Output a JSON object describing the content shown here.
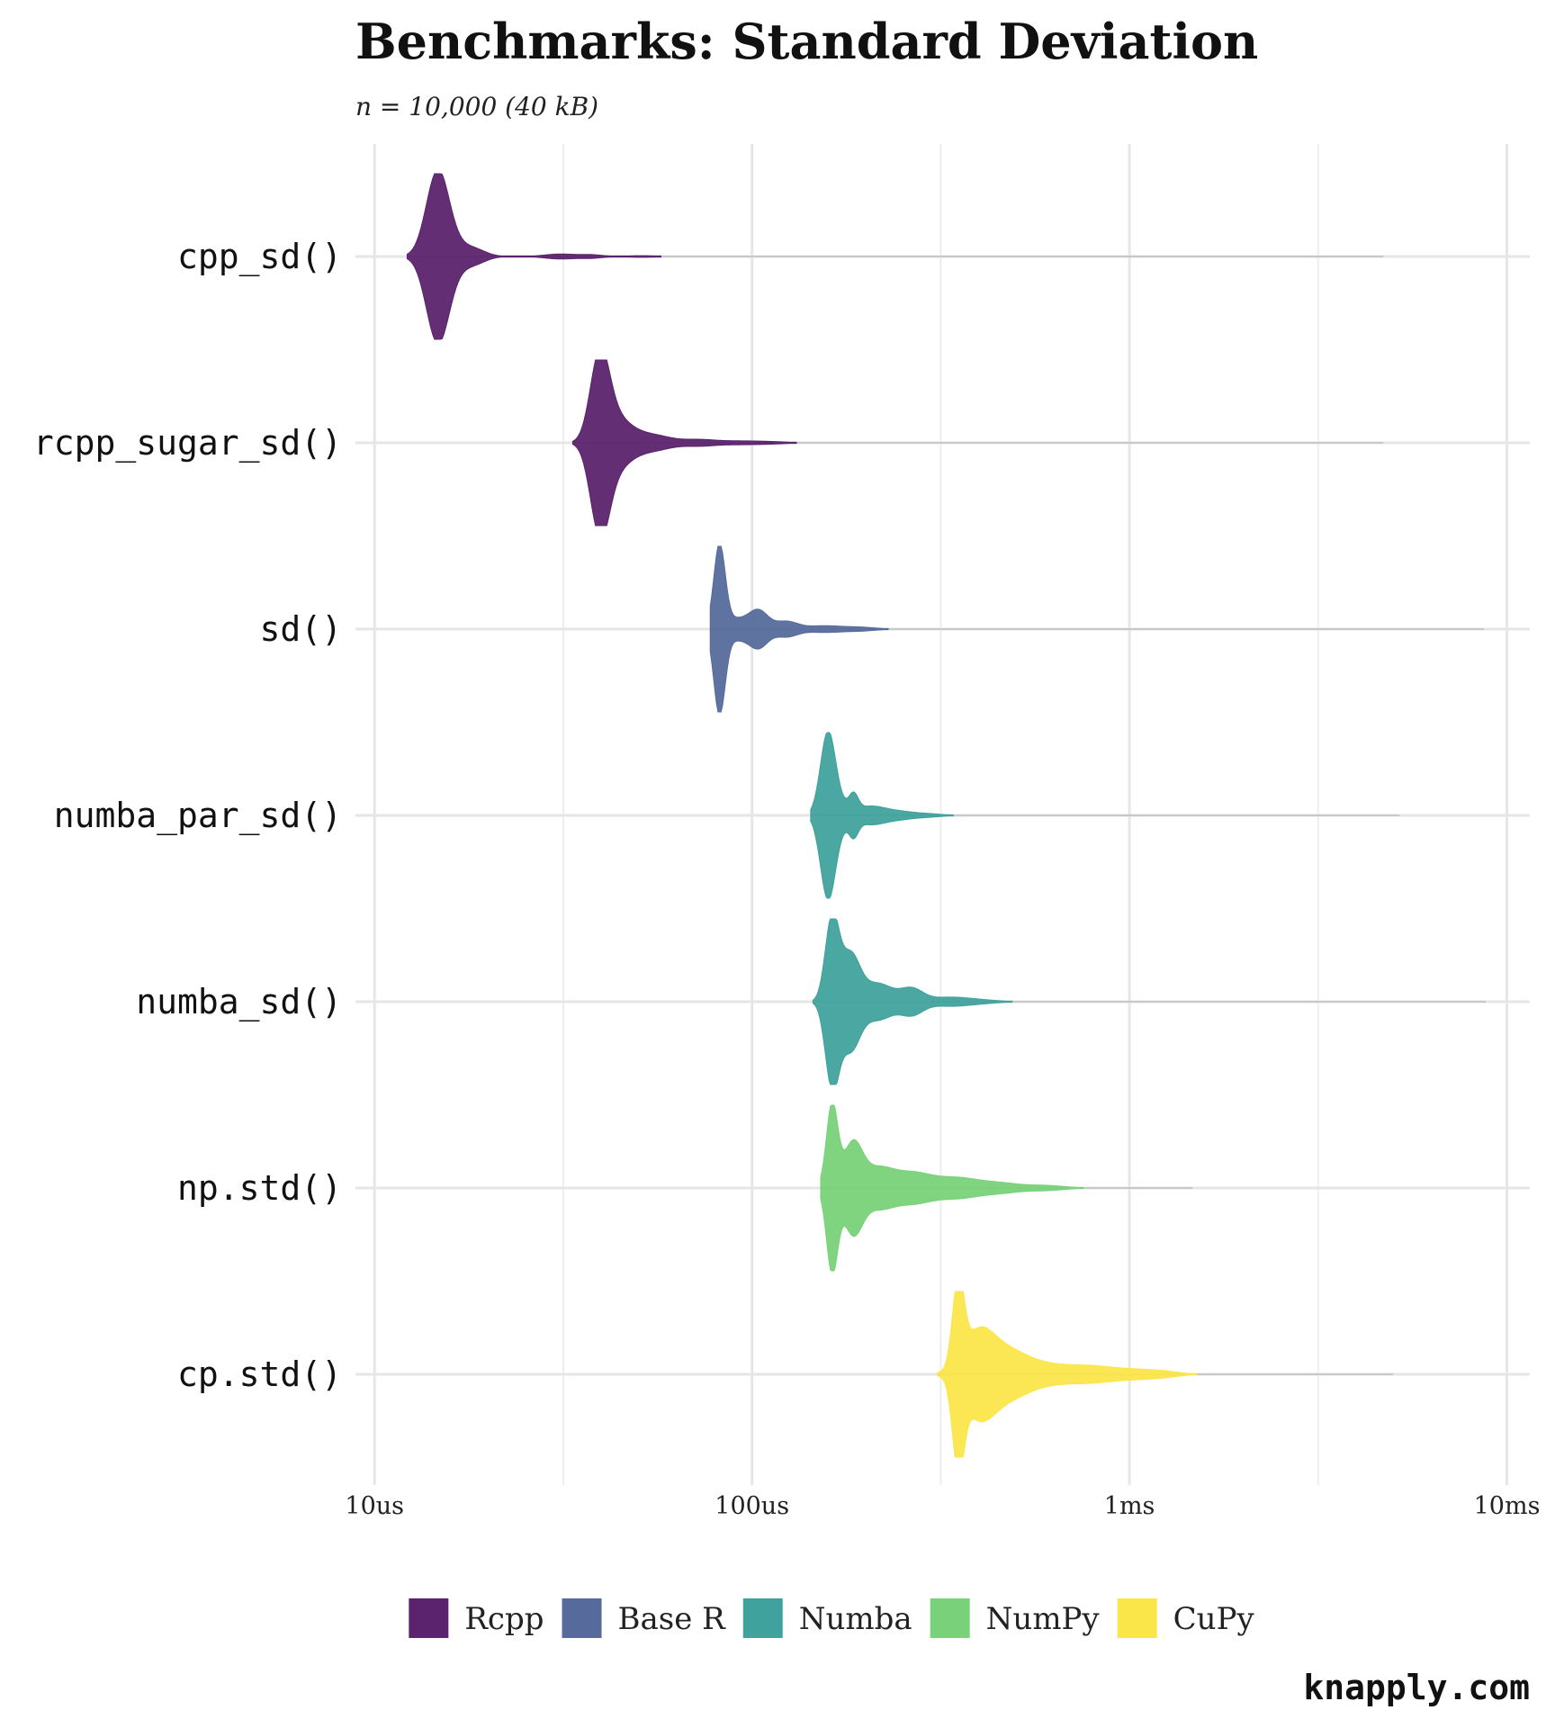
{
  "chart_data": {
    "type": "violin",
    "title": "Benchmarks: Standard Deviation",
    "subtitle": "n = 10,000 (40 kB)",
    "x_scale": "log10",
    "x_unit": "seconds",
    "xlim": [
      8.9e-06,
      0.0115
    ],
    "x_ticks": [
      {
        "value": 1e-05,
        "label": "10us"
      },
      {
        "value": 0.0001,
        "label": "100us"
      },
      {
        "value": 0.001,
        "label": "1ms"
      },
      {
        "value": 0.01,
        "label": "10ms"
      }
    ],
    "grid": true,
    "legend_position": "bottom",
    "legend": [
      {
        "name": "Rcpp",
        "color": "#5b236d"
      },
      {
        "name": "Base R",
        "color": "#566b9b"
      },
      {
        "name": "Numba",
        "color": "#40a29c"
      },
      {
        "name": "NumPy",
        "color": "#79d279"
      },
      {
        "name": "CuPy",
        "color": "#fbe64a"
      }
    ],
    "series": [
      {
        "expression": "cpp_sd()",
        "group": "Rcpp",
        "color": "#5b236d",
        "min": 1.22e-05,
        "max": 0.0047,
        "peaks": [
          {
            "x": 1.47e-05,
            "h": 1.0,
            "w": 0.03
          },
          {
            "x": 1.65e-05,
            "h": 0.1,
            "w": 0.045
          },
          {
            "x": 1.85e-05,
            "h": 0.05,
            "w": 0.03
          },
          {
            "x": 3.1e-05,
            "h": 0.03,
            "w": 0.04
          },
          {
            "x": 3.75e-05,
            "h": 0.02,
            "w": 0.03
          },
          {
            "x": 5.1e-05,
            "h": 0.01,
            "w": 0.04
          }
        ]
      },
      {
        "expression": "rcpp_sugar_sd()",
        "group": "Rcpp",
        "color": "#5b236d",
        "min": 3.35e-05,
        "max": 0.0047,
        "peaks": [
          {
            "x": 3.95e-05,
            "h": 1.0,
            "w": 0.025
          },
          {
            "x": 4.3e-05,
            "h": 0.25,
            "w": 0.035
          },
          {
            "x": 4.8e-05,
            "h": 0.1,
            "w": 0.04
          },
          {
            "x": 5.6e-05,
            "h": 0.07,
            "w": 0.04
          },
          {
            "x": 7.2e-05,
            "h": 0.04,
            "w": 0.05
          },
          {
            "x": 9.5e-05,
            "h": 0.02,
            "w": 0.05
          },
          {
            "x": 0.000115,
            "h": 0.01,
            "w": 0.04
          }
        ]
      },
      {
        "expression": "sd()",
        "group": "Base R",
        "color": "#566b9b",
        "min": 7.75e-05,
        "max": 0.0087,
        "peaks": [
          {
            "x": 8.2e-05,
            "h": 1.0,
            "w": 0.015
          },
          {
            "x": 9.05e-05,
            "h": 0.12,
            "w": 0.03
          },
          {
            "x": 0.000104,
            "h": 0.22,
            "w": 0.025
          },
          {
            "x": 0.000123,
            "h": 0.09,
            "w": 0.03
          },
          {
            "x": 0.000155,
            "h": 0.04,
            "w": 0.05
          },
          {
            "x": 0.000195,
            "h": 0.02,
            "w": 0.04
          }
        ]
      },
      {
        "expression": "numba_par_sd()",
        "group": "Numba",
        "color": "#40a29c",
        "min": 0.000143,
        "max": 0.0052,
        "peaks": [
          {
            "x": 0.000159,
            "h": 1.0,
            "w": 0.02
          },
          {
            "x": 0.000175,
            "h": 0.09,
            "w": 0.025
          },
          {
            "x": 0.000186,
            "h": 0.18,
            "w": 0.012
          },
          {
            "x": 0.000205,
            "h": 0.1,
            "w": 0.035
          },
          {
            "x": 0.00024,
            "h": 0.05,
            "w": 0.04
          },
          {
            "x": 0.00029,
            "h": 0.02,
            "w": 0.04
          }
        ]
      },
      {
        "expression": "numba_sd()",
        "group": "Numba",
        "color": "#40a29c",
        "min": 0.000145,
        "max": 0.0088,
        "peaks": [
          {
            "x": 0.000163,
            "h": 1.0,
            "w": 0.018
          },
          {
            "x": 0.000182,
            "h": 0.55,
            "w": 0.025
          },
          {
            "x": 0.000215,
            "h": 0.22,
            "w": 0.04
          },
          {
            "x": 0.000265,
            "h": 0.15,
            "w": 0.03
          },
          {
            "x": 0.00033,
            "h": 0.05,
            "w": 0.05
          },
          {
            "x": 0.0004,
            "h": 0.02,
            "w": 0.05
          }
        ]
      },
      {
        "expression": "np.std()",
        "group": "NumPy",
        "color": "#79d279",
        "min": 0.000152,
        "max": 0.00147,
        "peaks": [
          {
            "x": 0.000163,
            "h": 1.0,
            "w": 0.015
          },
          {
            "x": 0.000185,
            "h": 0.52,
            "w": 0.025
          },
          {
            "x": 0.000215,
            "h": 0.22,
            "w": 0.04
          },
          {
            "x": 0.000265,
            "h": 0.17,
            "w": 0.05
          },
          {
            "x": 0.00035,
            "h": 0.12,
            "w": 0.06
          },
          {
            "x": 0.00046,
            "h": 0.05,
            "w": 0.05
          },
          {
            "x": 0.0006,
            "h": 0.03,
            "w": 0.05
          }
        ]
      },
      {
        "expression": "cp.std()",
        "group": "CuPy",
        "color": "#fbe64a",
        "min": 0.00031,
        "max": 0.005,
        "peaks": [
          {
            "x": 0.000352,
            "h": 1.0,
            "w": 0.015
          },
          {
            "x": 0.000395,
            "h": 0.4,
            "w": 0.04
          },
          {
            "x": 0.00046,
            "h": 0.28,
            "w": 0.06
          },
          {
            "x": 0.0006,
            "h": 0.1,
            "w": 0.07
          },
          {
            "x": 0.0008,
            "h": 0.08,
            "w": 0.06
          },
          {
            "x": 0.00105,
            "h": 0.05,
            "w": 0.06
          },
          {
            "x": 0.00125,
            "h": 0.02,
            "w": 0.04
          }
        ]
      }
    ],
    "caption": "knapply.com"
  }
}
